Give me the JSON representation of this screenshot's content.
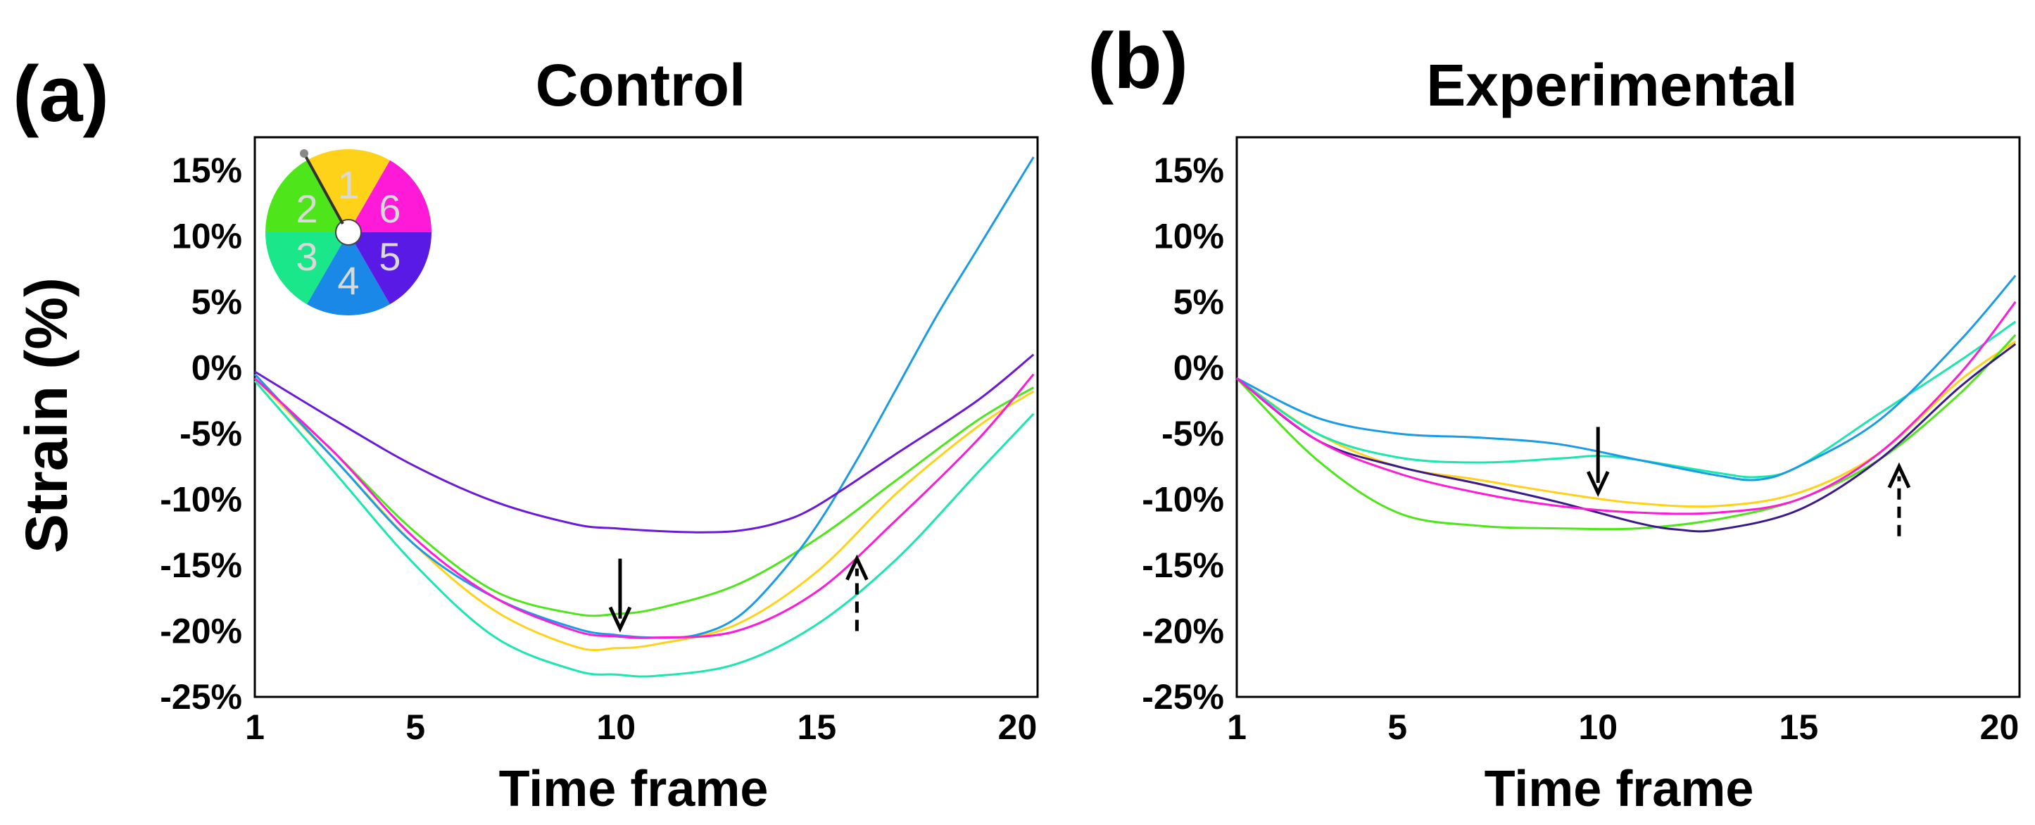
{
  "figure": {
    "ylabel": "Strain (%)",
    "segment_wheel": {
      "segments": [
        "1",
        "2",
        "3",
        "4",
        "5",
        "6"
      ],
      "colors": [
        "#ffd21a",
        "#4ee61a",
        "#1ae68a",
        "#1a88e6",
        "#5a1ae6",
        "#ff1ad7"
      ]
    }
  },
  "chart_data": [
    {
      "type": "line",
      "panel_label": "(a)",
      "title": "Control",
      "xlabel": "Time frame",
      "ylabel": "Strain (%)",
      "xlim": [
        1,
        20.5
      ],
      "ylim": [
        -25,
        17.5
      ],
      "xticks": [
        1,
        5,
        10,
        15,
        20
      ],
      "yticks": [
        15,
        10,
        5,
        0,
        -5,
        -10,
        -15,
        -20,
        -25
      ],
      "ytick_labels": [
        "15%",
        "10%",
        "5%",
        "0%",
        "-5%",
        "-10%",
        "-15%",
        "-20%",
        "-25%"
      ],
      "annotations": [
        {
          "type": "solid-arrow",
          "x": 10.1,
          "y_from": -14.5,
          "y_to": -19.8
        },
        {
          "type": "dashed-arrow",
          "x": 16.0,
          "y_from": -20.0,
          "y_to": -14.5
        }
      ],
      "series": [
        {
          "name": "Segment 1",
          "color": "#ffd21a",
          "x": [
            1,
            3,
            5,
            7,
            9,
            10,
            11,
            13,
            15,
            17,
            19,
            20.4
          ],
          "values": [
            -0.8,
            -7,
            -13.5,
            -18.5,
            -21.2,
            -21.3,
            -21,
            -19.5,
            -15.5,
            -9.5,
            -4.5,
            -1.8
          ]
        },
        {
          "name": "Segment 2",
          "color": "#4ee61a",
          "x": [
            1,
            3,
            5,
            7,
            9,
            10,
            11,
            13,
            15,
            17,
            19,
            20.4
          ],
          "values": [
            -0.8,
            -6.5,
            -12.5,
            -17,
            -18.7,
            -18.7,
            -18.3,
            -16.5,
            -13,
            -8.5,
            -4,
            -1.5
          ]
        },
        {
          "name": "Segment 3",
          "color": "#1ae6b0",
          "x": [
            1,
            3,
            5,
            7,
            9,
            10,
            11,
            13,
            15,
            17,
            19,
            20.4
          ],
          "values": [
            -1,
            -8,
            -15,
            -20.5,
            -23,
            -23.3,
            -23.4,
            -22.5,
            -19.5,
            -14.5,
            -8,
            -3.5
          ]
        },
        {
          "name": "Segment 4",
          "color": "#1a9be6",
          "x": [
            1,
            3,
            5,
            7,
            9,
            10,
            11,
            12,
            13,
            14,
            15,
            16,
            17,
            18,
            19,
            20.4
          ],
          "values": [
            -0.5,
            -7,
            -13.5,
            -17.5,
            -19.8,
            -20.3,
            -20.5,
            -20.3,
            -19,
            -16,
            -12,
            -7,
            -1.5,
            4,
            9,
            16
          ]
        },
        {
          "name": "Segment 5",
          "color": "#6a1ad6",
          "x": [
            1,
            3,
            5,
            7,
            9,
            10,
            11,
            12,
            13,
            14,
            15,
            17,
            19,
            20.4
          ],
          "values": [
            -0.3,
            -4,
            -7.5,
            -10.2,
            -11.9,
            -12.2,
            -12.4,
            -12.5,
            -12.4,
            -11.8,
            -10.5,
            -6.5,
            -2.5,
            1
          ]
        },
        {
          "name": "Segment 6",
          "color": "#ff1ad7",
          "x": [
            1,
            3,
            5,
            7,
            9,
            10,
            11,
            13,
            15,
            17,
            19,
            20.4
          ],
          "values": [
            -0.8,
            -6.5,
            -13,
            -17.5,
            -20,
            -20.4,
            -20.5,
            -20,
            -17,
            -11.5,
            -5.5,
            -0.5
          ]
        }
      ]
    },
    {
      "type": "line",
      "panel_label": "(b)",
      "title": "Experimental",
      "xlabel": "Time frame",
      "ylabel": "Strain (%)",
      "xlim": [
        1,
        20.5
      ],
      "ylim": [
        -25,
        17.5
      ],
      "xticks": [
        1,
        5,
        10,
        15,
        20
      ],
      "yticks": [
        15,
        10,
        5,
        0,
        -5,
        -10,
        -15,
        -20,
        -25
      ],
      "ytick_labels": [
        "15%",
        "10%",
        "5%",
        "0%",
        "-5%",
        "-10%",
        "-15%",
        "-20%",
        "-25%"
      ],
      "annotations": [
        {
          "type": "solid-arrow",
          "x": 10.0,
          "y_from": -4.5,
          "y_to": -9.5
        },
        {
          "type": "dashed-arrow",
          "x": 17.5,
          "y_from": -12.8,
          "y_to": -7.5
        }
      ],
      "series": [
        {
          "name": "Segment 1",
          "color": "#ffd21a",
          "x": [
            1,
            3,
            5,
            7,
            9,
            11,
            13,
            15,
            17,
            19,
            20.4
          ],
          "values": [
            -0.8,
            -5,
            -7.5,
            -8.5,
            -9.5,
            -10.3,
            -10.5,
            -9.5,
            -6.5,
            -1,
            2
          ]
        },
        {
          "name": "Segment 2",
          "color": "#4ee61a",
          "x": [
            1,
            3,
            5,
            7,
            9,
            11,
            13,
            15,
            17,
            19,
            20.4
          ],
          "values": [
            -0.8,
            -7,
            -11,
            -12,
            -12.2,
            -12.2,
            -11.5,
            -10,
            -7,
            -2,
            2.5
          ]
        },
        {
          "name": "Segment 3",
          "color": "#1ae6b0",
          "x": [
            1,
            3,
            5,
            7,
            9,
            10,
            11,
            13,
            14,
            15,
            17,
            19,
            20.4
          ],
          "values": [
            -0.8,
            -5,
            -6.8,
            -7.2,
            -6.9,
            -6.7,
            -7,
            -8,
            -8.3,
            -7.5,
            -3.5,
            0.5,
            3.5
          ]
        },
        {
          "name": "Segment 4",
          "color": "#1a9be6",
          "x": [
            1,
            3,
            5,
            7,
            9,
            11,
            13,
            14,
            15,
            17,
            19,
            20.4
          ],
          "values": [
            -0.8,
            -3.8,
            -5,
            -5.3,
            -5.8,
            -7,
            -8.2,
            -8.5,
            -7.5,
            -4,
            2,
            7
          ]
        },
        {
          "name": "Segment 5",
          "color": "#3a1a8a",
          "x": [
            1,
            3,
            5,
            7,
            9,
            11,
            12,
            13,
            15,
            17,
            19,
            20.4
          ],
          "values": [
            -0.8,
            -5.5,
            -7.5,
            -8.8,
            -10.2,
            -11.8,
            -12.3,
            -12.3,
            -10.8,
            -7,
            -1.5,
            1.8
          ]
        },
        {
          "name": "Segment 6",
          "color": "#ff1ad7",
          "x": [
            1,
            3,
            5,
            7,
            9,
            11,
            13,
            15,
            17,
            19,
            20.4
          ],
          "values": [
            -0.8,
            -5.5,
            -8,
            -9.5,
            -10.5,
            -11,
            -11,
            -10,
            -6.5,
            -0.5,
            5
          ]
        }
      ]
    }
  ]
}
